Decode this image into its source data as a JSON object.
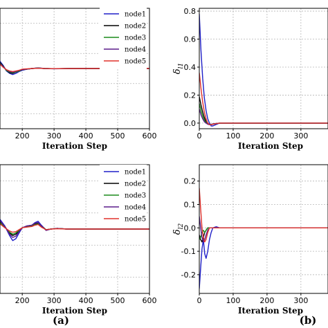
{
  "chart_data": [
    {
      "id": "a-top",
      "type": "line",
      "xlabel": "Iteration Step",
      "ylabel": "",
      "xlim": [
        130,
        600
      ],
      "ylim": [
        -1,
        1
      ],
      "xticks": [
        200,
        300,
        400,
        500,
        600
      ],
      "xtick_labels": [
        "200",
        "300",
        "400",
        "500",
        "600"
      ],
      "yticks": [],
      "grid": true,
      "legend": "top-right",
      "series": [
        {
          "name": "node1",
          "color": "#1f1fc8",
          "x": [
            130,
            140,
            150,
            160,
            170,
            180,
            190,
            200,
            215,
            230,
            250,
            270,
            300,
            350,
            400,
            600
          ],
          "y": [
            0.12,
            0.05,
            -0.04,
            -0.08,
            -0.1,
            -0.08,
            -0.05,
            -0.03,
            -0.01,
            0.0,
            0.01,
            0.0,
            -0.005,
            0.0,
            0.0,
            0.0
          ]
        },
        {
          "name": "node2",
          "color": "#000000",
          "x": [
            130,
            140,
            150,
            160,
            170,
            180,
            190,
            200,
            215,
            230,
            250,
            270,
            300,
            350,
            400,
            600
          ],
          "y": [
            0.1,
            0.04,
            -0.03,
            -0.07,
            -0.08,
            -0.06,
            -0.04,
            -0.02,
            -0.01,
            0.0,
            0.008,
            0.0,
            -0.004,
            0.0,
            0.0,
            0.0
          ]
        },
        {
          "name": "node3",
          "color": "#1a8a1a",
          "x": [
            130,
            140,
            150,
            160,
            170,
            180,
            190,
            200,
            215,
            230,
            250,
            270,
            300,
            350,
            400,
            600
          ],
          "y": [
            0.09,
            0.03,
            -0.03,
            -0.06,
            -0.07,
            -0.06,
            -0.04,
            -0.02,
            -0.01,
            0.0,
            0.007,
            0.0,
            -0.003,
            0.0,
            0.0,
            0.0
          ]
        },
        {
          "name": "node4",
          "color": "#5a1a8a",
          "x": [
            130,
            140,
            150,
            160,
            170,
            180,
            190,
            200,
            215,
            230,
            250,
            270,
            300,
            350,
            400,
            600
          ],
          "y": [
            0.08,
            0.03,
            -0.02,
            -0.05,
            -0.06,
            -0.05,
            -0.03,
            -0.02,
            -0.01,
            0.0,
            0.006,
            0.0,
            -0.003,
            0.0,
            0.0,
            0.0
          ]
        },
        {
          "name": "node5",
          "color": "#e0302a",
          "x": [
            130,
            140,
            150,
            160,
            170,
            180,
            190,
            200,
            215,
            230,
            250,
            270,
            300,
            350,
            400,
            600
          ],
          "y": [
            0.07,
            0.02,
            -0.02,
            -0.04,
            -0.05,
            -0.04,
            -0.03,
            -0.01,
            -0.005,
            0.0,
            0.005,
            0.0,
            -0.002,
            0.0,
            0.0,
            0.0
          ]
        }
      ]
    },
    {
      "id": "a-bottom",
      "type": "line",
      "xlabel": "Iteration Step",
      "ylabel": "",
      "xlim": [
        130,
        600
      ],
      "ylim": [
        -1,
        1
      ],
      "xticks": [
        200,
        300,
        400,
        500,
        600
      ],
      "xtick_labels": [
        "200",
        "300",
        "400",
        "500",
        "600"
      ],
      "yticks": [],
      "grid": true,
      "legend": "top-right",
      "series": [
        {
          "name": "node1",
          "color": "#1f1fc8",
          "x": [
            130,
            145,
            160,
            170,
            180,
            190,
            200,
            215,
            230,
            240,
            250,
            260,
            275,
            290,
            310,
            340,
            400,
            600
          ],
          "y": [
            0.15,
            0.05,
            -0.1,
            -0.18,
            -0.15,
            -0.06,
            0.02,
            0.05,
            0.06,
            0.1,
            0.12,
            0.06,
            -0.02,
            0.0,
            0.01,
            0.0,
            0.0,
            0.0
          ]
        },
        {
          "name": "node2",
          "color": "#000000",
          "x": [
            130,
            145,
            160,
            170,
            180,
            190,
            200,
            215,
            230,
            240,
            250,
            260,
            275,
            290,
            310,
            340,
            400,
            600
          ],
          "y": [
            0.12,
            0.04,
            -0.06,
            -0.1,
            -0.08,
            -0.03,
            0.02,
            0.04,
            0.05,
            0.08,
            0.09,
            0.05,
            -0.01,
            0.0,
            0.01,
            0.0,
            0.0,
            0.0
          ]
        },
        {
          "name": "node3",
          "color": "#1a8a1a",
          "x": [
            130,
            145,
            160,
            170,
            180,
            190,
            200,
            215,
            230,
            240,
            250,
            260,
            275,
            290,
            310,
            340,
            400,
            600
          ],
          "y": [
            0.1,
            0.03,
            -0.05,
            -0.08,
            -0.06,
            -0.02,
            0.02,
            0.04,
            0.05,
            0.07,
            0.08,
            0.04,
            -0.01,
            0.0,
            0.01,
            0.0,
            0.0,
            0.0
          ]
        },
        {
          "name": "node4",
          "color": "#5a1a8a",
          "x": [
            130,
            145,
            160,
            170,
            180,
            190,
            200,
            215,
            230,
            240,
            250,
            260,
            275,
            290,
            310,
            340,
            400,
            600
          ],
          "y": [
            0.13,
            0.04,
            -0.08,
            -0.13,
            -0.11,
            -0.04,
            0.02,
            0.05,
            0.06,
            0.09,
            0.1,
            0.05,
            -0.02,
            0.0,
            0.01,
            0.0,
            0.0,
            0.0
          ]
        },
        {
          "name": "node5",
          "color": "#e0302a",
          "x": [
            130,
            145,
            160,
            170,
            180,
            190,
            200,
            215,
            230,
            240,
            250,
            260,
            275,
            290,
            310,
            340,
            400,
            600
          ],
          "y": [
            0.08,
            0.02,
            -0.03,
            -0.05,
            -0.04,
            -0.01,
            0.02,
            0.03,
            0.04,
            0.06,
            0.07,
            0.03,
            -0.01,
            0.0,
            0.005,
            0.0,
            0.0,
            0.0
          ]
        }
      ]
    },
    {
      "id": "b-top",
      "type": "line",
      "xlabel": "Iteration Step",
      "ylabel": "δ_l1",
      "xlim": [
        0,
        380
      ],
      "ylim": [
        -0.04,
        0.82
      ],
      "xticks": [
        0,
        100,
        200,
        300
      ],
      "xtick_labels": [
        "0",
        "100",
        "200",
        "300"
      ],
      "yticks": [
        0.0,
        0.2,
        0.4,
        0.6,
        0.8
      ],
      "ytick_labels": [
        "0.0",
        "0.2",
        "0.4",
        "0.6",
        "0.8"
      ],
      "grid": true,
      "series": [
        {
          "name": "node1",
          "color": "#1f1fc8",
          "x": [
            0,
            5,
            10,
            15,
            20,
            25,
            30,
            35,
            40,
            50,
            60,
            80,
            120,
            380
          ],
          "y": [
            0.78,
            0.52,
            0.32,
            0.18,
            0.09,
            0.03,
            0.0,
            -0.02,
            -0.02,
            -0.01,
            0.0,
            0.0,
            0.0,
            0.0
          ]
        },
        {
          "name": "node2",
          "color": "#000000",
          "x": [
            0,
            5,
            10,
            15,
            20,
            25,
            30,
            35,
            40,
            50,
            60,
            80,
            120,
            380
          ],
          "y": [
            0.19,
            0.13,
            0.08,
            0.04,
            0.01,
            -0.005,
            -0.01,
            -0.01,
            -0.008,
            -0.004,
            0.0,
            0.0,
            0.0,
            0.0
          ]
        },
        {
          "name": "node3",
          "color": "#1a8a1a",
          "x": [
            0,
            5,
            10,
            15,
            20,
            25,
            30,
            35,
            40,
            50,
            60,
            80,
            120,
            380
          ],
          "y": [
            0.14,
            0.09,
            0.05,
            0.02,
            0.005,
            -0.005,
            -0.01,
            -0.01,
            -0.006,
            -0.003,
            0.0,
            0.0,
            0.0,
            0.0
          ]
        },
        {
          "name": "node4",
          "color": "#5a1a8a",
          "x": [
            0,
            5,
            10,
            15,
            20,
            25,
            30,
            35,
            40,
            50,
            60,
            80,
            120,
            380
          ],
          "y": [
            0.1,
            0.06,
            0.03,
            0.01,
            0.0,
            -0.008,
            -0.012,
            -0.01,
            -0.006,
            -0.003,
            0.0,
            0.0,
            0.0,
            0.0
          ]
        },
        {
          "name": "node5",
          "color": "#e0302a",
          "x": [
            0,
            5,
            10,
            15,
            20,
            25,
            30,
            35,
            40,
            50,
            60,
            80,
            120,
            380
          ],
          "y": [
            0.36,
            0.25,
            0.15,
            0.08,
            0.03,
            0.0,
            -0.01,
            -0.012,
            -0.008,
            -0.004,
            0.0,
            0.0,
            0.0,
            0.0
          ]
        }
      ]
    },
    {
      "id": "b-bottom",
      "type": "line",
      "xlabel": "Iteration Step",
      "ylabel": "δ_l2",
      "xlim": [
        0,
        380
      ],
      "ylim": [
        -0.28,
        0.27
      ],
      "xticks": [
        0,
        100,
        200,
        300
      ],
      "xtick_labels": [
        "0",
        "100",
        "200",
        "300"
      ],
      "yticks": [
        -0.2,
        -0.1,
        0.0,
        0.1,
        0.2
      ],
      "ytick_labels": [
        "-0.2",
        "-0.1",
        "0.0",
        "0.1",
        "0.2"
      ],
      "grid": true,
      "series": [
        {
          "name": "node1",
          "color": "#1f1fc8",
          "x": [
            0,
            4,
            8,
            12,
            16,
            20,
            25,
            30,
            35,
            40,
            50,
            60,
            100,
            380
          ],
          "y": [
            -0.26,
            -0.17,
            -0.09,
            -0.05,
            -0.11,
            -0.13,
            -0.1,
            -0.05,
            -0.02,
            0.0,
            0.005,
            0.0,
            0.0,
            0.0
          ]
        },
        {
          "name": "node2",
          "color": "#000000",
          "x": [
            0,
            4,
            8,
            12,
            16,
            20,
            25,
            30,
            35,
            40,
            50,
            60,
            100,
            380
          ],
          "y": [
            -0.03,
            -0.05,
            -0.06,
            -0.04,
            -0.02,
            -0.01,
            0.0,
            0.0,
            0.0,
            0.0,
            0.0,
            0.0,
            0.0,
            0.0
          ]
        },
        {
          "name": "node3",
          "color": "#1a8a1a",
          "x": [
            0,
            4,
            8,
            12,
            16,
            20,
            25,
            30,
            35,
            40,
            50,
            60,
            100,
            380
          ],
          "y": [
            -0.05,
            -0.04,
            -0.02,
            -0.01,
            -0.02,
            -0.01,
            0.0,
            0.0,
            0.0,
            0.0,
            0.0,
            0.0,
            0.0,
            0.0
          ]
        },
        {
          "name": "node4",
          "color": "#5a1a8a",
          "x": [
            0,
            4,
            8,
            12,
            16,
            20,
            25,
            30,
            35,
            40,
            50,
            60,
            100,
            380
          ],
          "y": [
            0.05,
            0.0,
            -0.04,
            -0.06,
            -0.05,
            -0.03,
            -0.01,
            0.0,
            0.0,
            0.0,
            0.0,
            0.0,
            0.0,
            0.0
          ]
        },
        {
          "name": "node5",
          "color": "#e0302a",
          "x": [
            0,
            4,
            8,
            12,
            16,
            20,
            25,
            30,
            35,
            40,
            50,
            60,
            100,
            380
          ],
          "y": [
            0.17,
            0.08,
            0.0,
            -0.04,
            -0.06,
            -0.05,
            -0.02,
            0.0,
            0.0,
            0.0,
            0.0,
            0.0,
            0.0,
            0.0
          ]
        }
      ]
    }
  ],
  "panel_labels": {
    "a": "(a)",
    "b": "(b)"
  },
  "legend": {
    "entries": [
      "node1",
      "node2",
      "node3",
      "node4",
      "node5"
    ],
    "colors": [
      "#1f1fc8",
      "#000000",
      "#1a8a1a",
      "#5a1a8a",
      "#e0302a"
    ]
  }
}
